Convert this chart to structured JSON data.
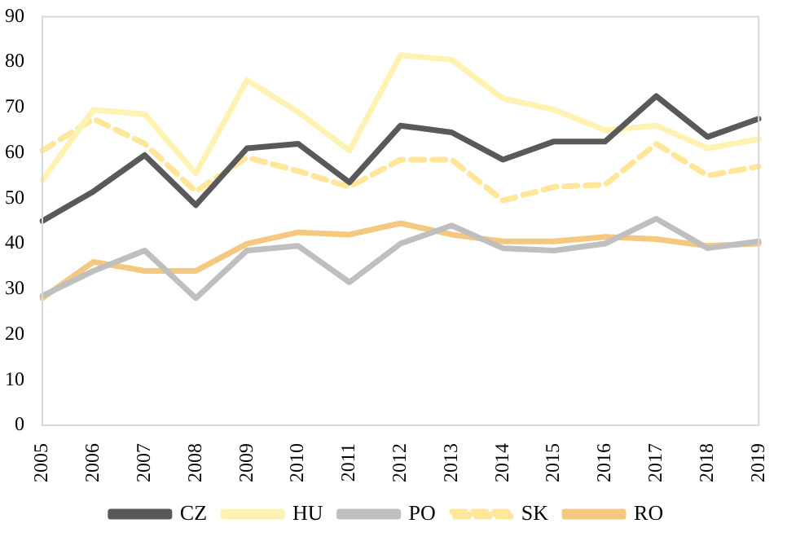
{
  "chart_data": {
    "type": "line",
    "categories": [
      "2005",
      "2006",
      "2007",
      "2008",
      "2009",
      "2010",
      "2011",
      "2012",
      "2013",
      "2014",
      "2015",
      "2016",
      "2017",
      "2018",
      "2019"
    ],
    "series": [
      {
        "name": "CZ",
        "color": "#595959",
        "values": [
          45,
          51.5,
          59.5,
          48.5,
          61,
          62,
          53.5,
          66,
          64.5,
          58.5,
          62.5,
          62.5,
          72.5,
          63.5,
          67.5
        ]
      },
      {
        "name": "HU",
        "color": "#fff2b3",
        "values": [
          54,
          69.5,
          68.5,
          55.5,
          76,
          69,
          60.5,
          81.5,
          80.5,
          72,
          69.5,
          65,
          66,
          61,
          63
        ]
      },
      {
        "name": "PO",
        "color": "#bfbfbf",
        "values": [
          28.5,
          34,
          38.5,
          28,
          38.5,
          39.5,
          31.5,
          40,
          44,
          39,
          38.5,
          40,
          45.5,
          39,
          40.5
        ]
      },
      {
        "name": "SK",
        "color": "#ffe699",
        "line_style": "dashed",
        "values": [
          60.5,
          67.5,
          62,
          51.5,
          59,
          56,
          52.5,
          58.5,
          58.5,
          49.5,
          52.5,
          53,
          62,
          55,
          57
        ]
      },
      {
        "name": "RO",
        "color": "#f4c87e",
        "values": [
          28,
          36,
          34,
          34,
          40,
          42.5,
          42,
          44.5,
          42,
          40.5,
          40.5,
          41.5,
          41,
          39.5,
          40
        ]
      }
    ],
    "ylim": [
      0,
      90
    ],
    "yticks": [
      0,
      10,
      20,
      30,
      40,
      50,
      60,
      70,
      80,
      90
    ],
    "grid": false,
    "legend": "bottom",
    "marker": "none",
    "line_style": "solid"
  }
}
